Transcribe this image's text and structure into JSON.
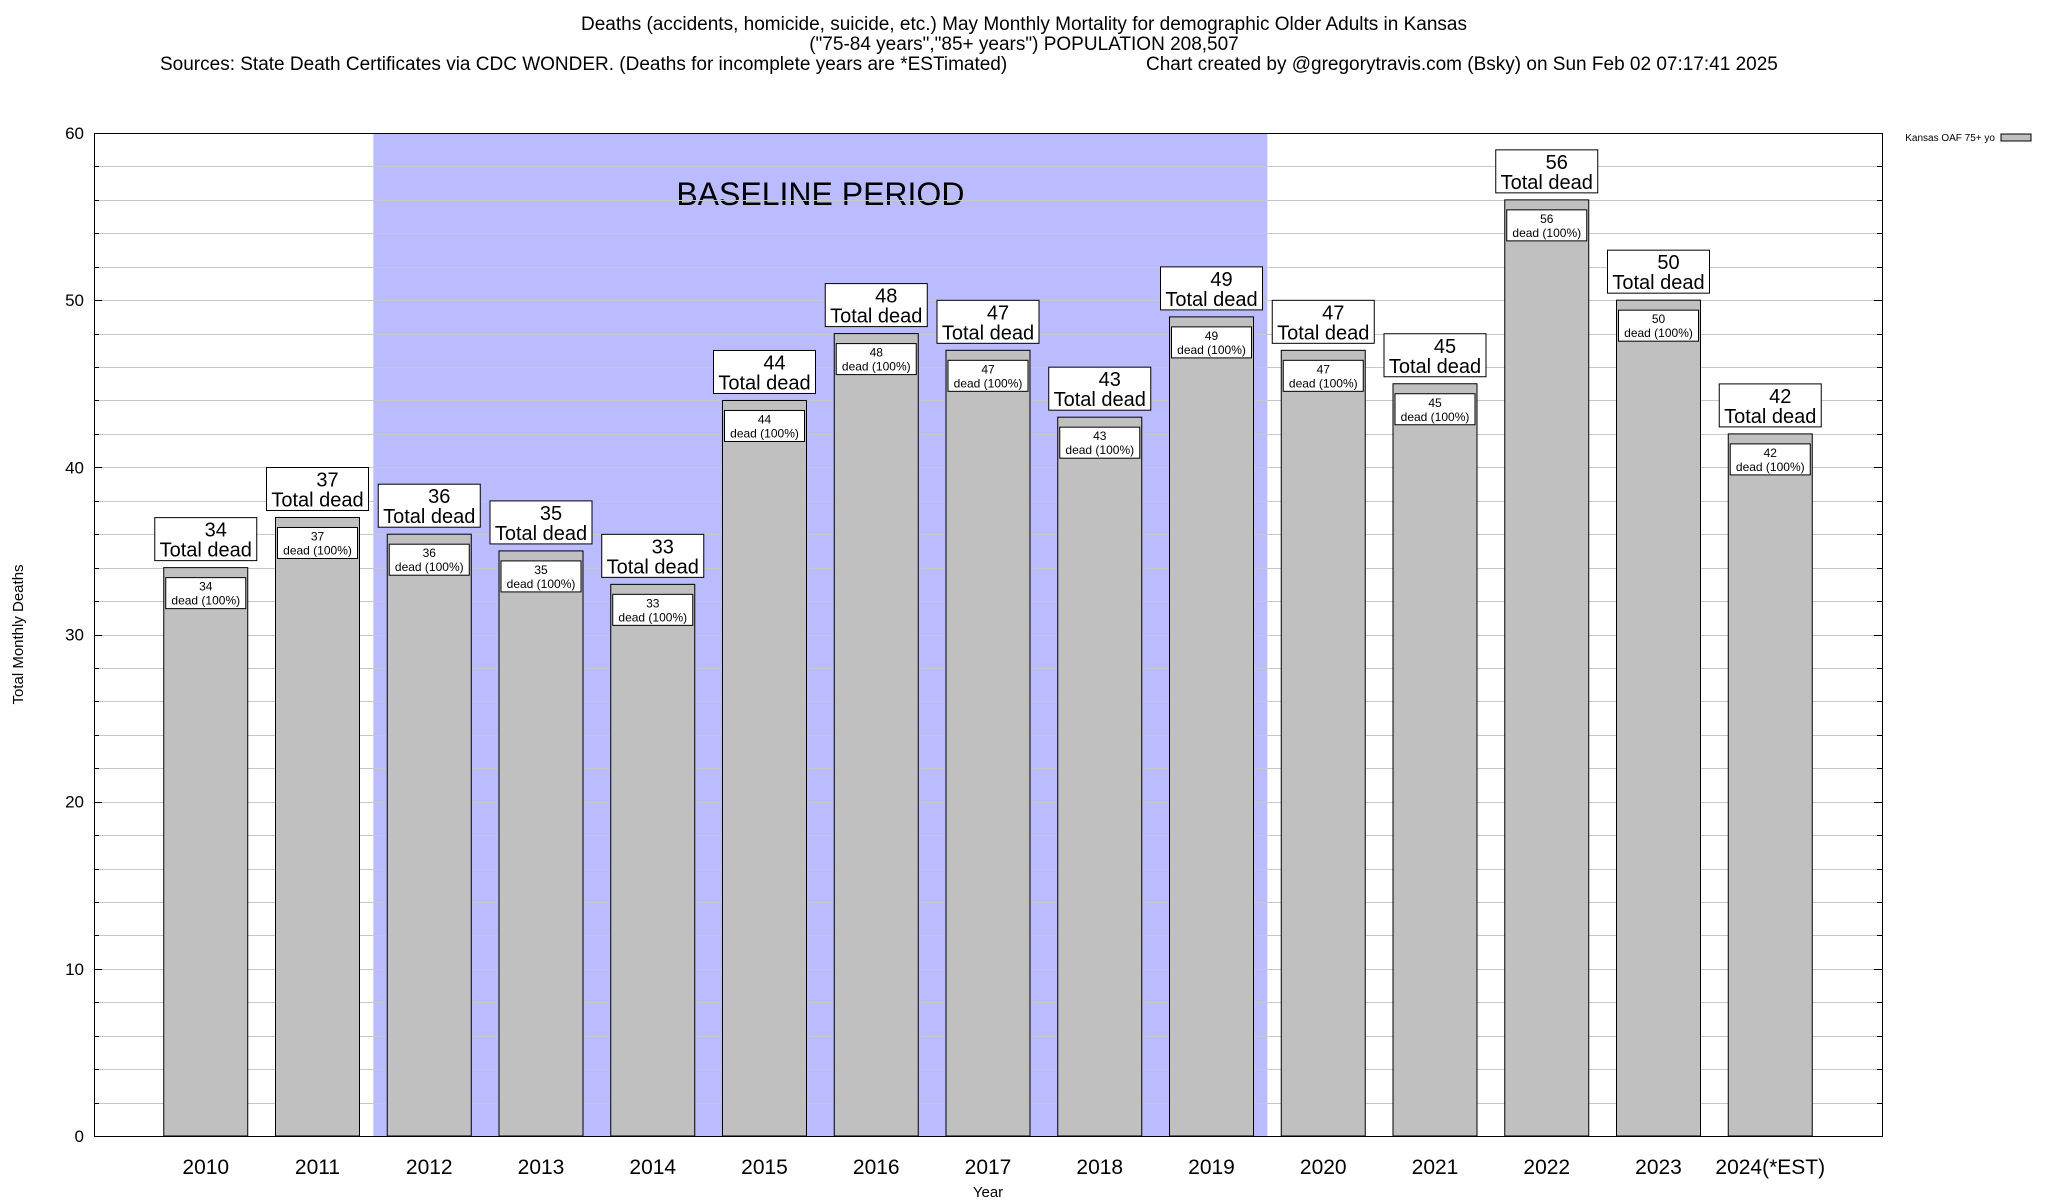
{
  "chart_data": {
    "type": "bar",
    "title": "Deaths (accidents, homicide, suicide, etc.) May Monthly Mortality for demographic Older Adults in Kansas",
    "subtitle": "(\"75-84 years\",\"85+ years\") POPULATION 208,507",
    "sources": "Sources: State Death Certificates via CDC WONDER. (Deaths for incomplete years are *ESTimated)",
    "credit": "Chart created by @gregorytravis.com (Bsky) on Sun Feb 02 07:17:41 2025",
    "xlabel": "Year",
    "ylabel": "Total Monthly Deaths",
    "ylim": [
      0,
      60
    ],
    "yticks": [
      0,
      10,
      20,
      30,
      40,
      50,
      60
    ],
    "grid": true,
    "legend_position": "top-right",
    "categories": [
      "2010",
      "2011",
      "2012",
      "2013",
      "2014",
      "2015",
      "2016",
      "2017",
      "2018",
      "2019",
      "2020",
      "2021",
      "2022",
      "2023",
      "2024(*EST)"
    ],
    "series": [
      {
        "name": "Kansas OAF 75+ yo",
        "color": "#c0c0c0",
        "values": [
          34,
          37,
          36,
          35,
          33,
          44,
          48,
          47,
          43,
          49,
          47,
          45,
          56,
          50,
          42
        ]
      }
    ],
    "total_label_suffix": "Total dead",
    "inner_label_suffix": "dead (100%)",
    "baseline_period": {
      "label": "BASELINE PERIOD",
      "start": "2012",
      "end": "2019",
      "color": "#bbbbff"
    }
  }
}
